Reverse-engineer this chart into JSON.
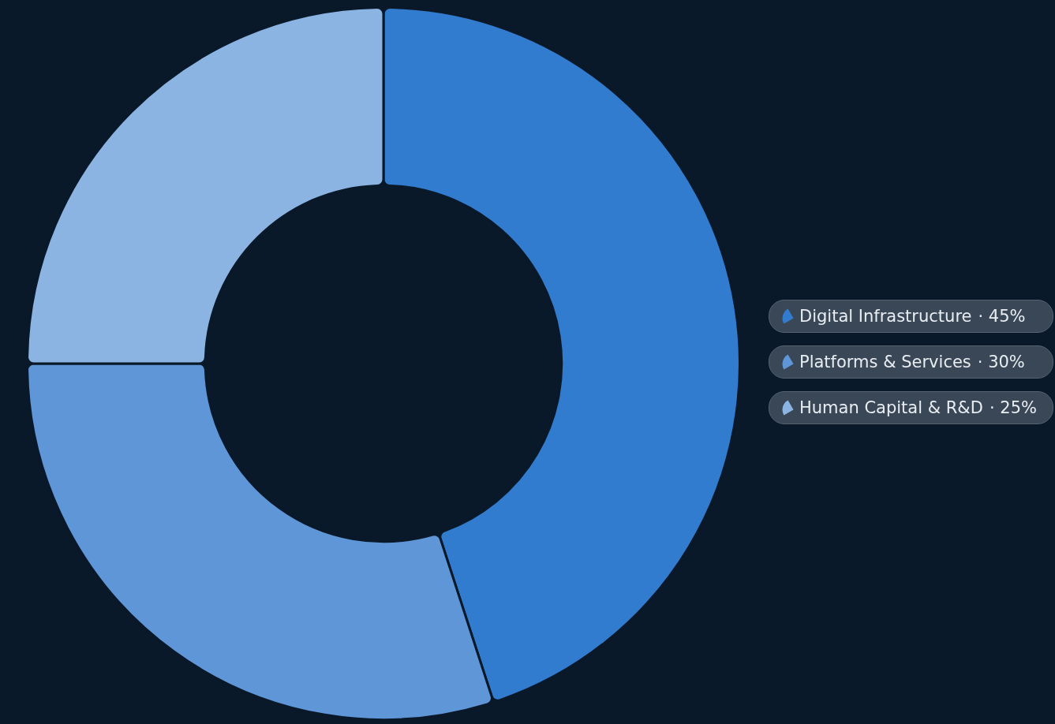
{
  "chart_data": {
    "type": "donut",
    "categories": [
      "Digital Infrastructure",
      "Platforms & Services",
      "Human Capital & R&D"
    ],
    "values": [
      45,
      30,
      25
    ],
    "colors": [
      "#317ccf",
      "#5f96d7",
      "#8bb4e2"
    ],
    "value_labels": [
      "· 45%",
      "· 30%",
      "· 25%"
    ],
    "legend": "right"
  }
}
